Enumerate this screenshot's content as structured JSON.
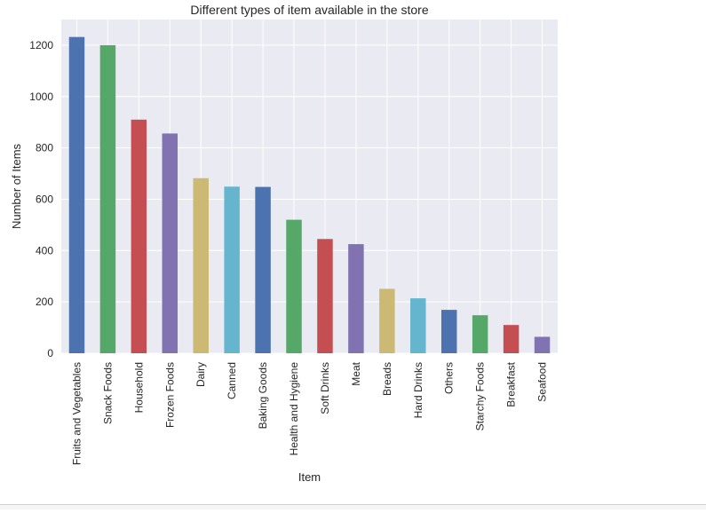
{
  "chart_data": {
    "type": "bar",
    "title": "Different types of item available in the store",
    "xlabel": "Item",
    "ylabel": "Number of Items",
    "ylim": [
      0,
      1300
    ],
    "yticks": [
      0,
      200,
      400,
      600,
      800,
      1000,
      1200
    ],
    "grid": true,
    "categories": [
      "Fruits and Vegetables",
      "Snack Foods",
      "Household",
      "Frozen Foods",
      "Dairy",
      "Canned",
      "Baking Goods",
      "Health and Hygiene",
      "Soft Drinks",
      "Meat",
      "Breads",
      "Hard Drinks",
      "Others",
      "Starchy Foods",
      "Breakfast",
      "Seafood"
    ],
    "values": [
      1232,
      1200,
      910,
      856,
      682,
      649,
      648,
      520,
      445,
      425,
      251,
      214,
      169,
      148,
      110,
      64
    ],
    "colors": [
      "#4C72B0",
      "#55A868",
      "#C44E52",
      "#8172B2",
      "#CCB974",
      "#64B5CD"
    ],
    "plot_background": "#EAEAF2",
    "grid_color": "#FFFFFF"
  }
}
